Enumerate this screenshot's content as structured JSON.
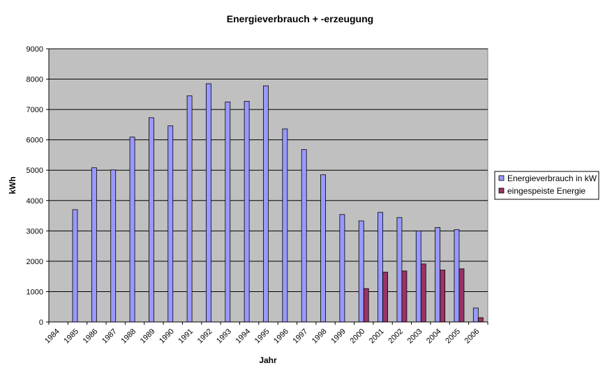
{
  "chart_data": {
    "type": "bar",
    "title": "Energieverbrauch + -erzeugung",
    "xlabel": "Jahr",
    "ylabel": "kWh",
    "ylim": [
      0,
      9000
    ],
    "yticks": [
      "0",
      "1000",
      "2000",
      "3000",
      "4000",
      "5000",
      "6000",
      "7000",
      "8000",
      "9000"
    ],
    "grid": "horizontal",
    "plot_background": "#c0c0c0",
    "legend_position": "right",
    "categories": [
      "1984",
      "1985",
      "1986",
      "1987",
      "1988",
      "1989",
      "1990",
      "1991",
      "1992",
      "1993",
      "1994",
      "1995",
      "1996",
      "1997",
      "1998",
      "1999",
      "2000",
      "2001",
      "2002",
      "2003",
      "2004",
      "2005",
      "2006"
    ],
    "series": [
      {
        "name": "Energieverbrauch in kW",
        "color": "#9999ff",
        "values": [
          null,
          3700,
          5080,
          5010,
          6090,
          6730,
          6460,
          7450,
          7850,
          7250,
          7270,
          7780,
          6360,
          5680,
          4850,
          3540,
          3330,
          3610,
          3440,
          3000,
          3110,
          3040,
          460
        ]
      },
      {
        "name": "eingespeiste Energie",
        "color": "#993366",
        "values": [
          null,
          null,
          null,
          null,
          null,
          null,
          null,
          null,
          null,
          null,
          null,
          null,
          null,
          null,
          null,
          null,
          1100,
          1640,
          1680,
          1910,
          1710,
          1750,
          140
        ]
      }
    ]
  }
}
